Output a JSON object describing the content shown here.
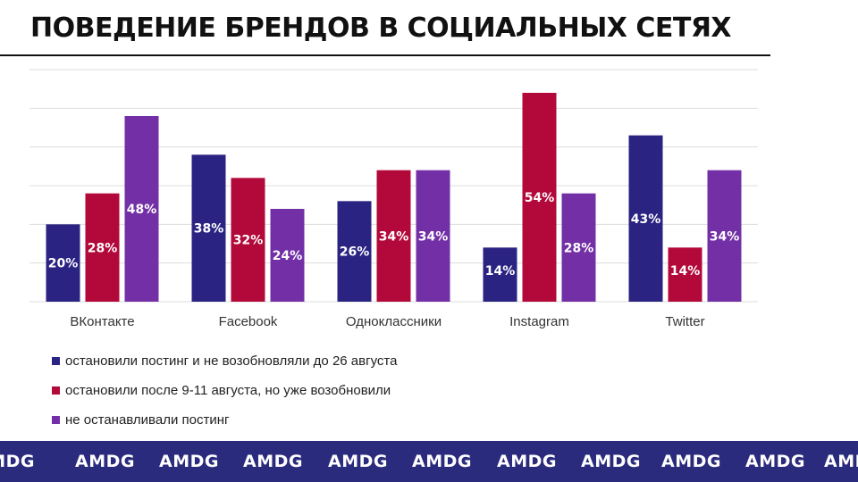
{
  "page": {
    "title": "ПОВЕДЕНИЕ БРЕНДОВ В СОЦИАЛЬНЫХ СЕТЯХ",
    "footer_brand": "AMDG"
  },
  "colors": {
    "series": [
      "#2b2382",
      "#b2083a",
      "#7330a6"
    ],
    "footer_bg": "#2b2b7d",
    "grid": "#dddddd"
  },
  "chart_data": {
    "type": "bar",
    "title": "ПОВЕДЕНИЕ БРЕНДОВ В СОЦИАЛЬНЫХ СЕТЯХ",
    "categories": [
      "ВКонтакте",
      "Facebook",
      "Одноклассники",
      "Instagram",
      "Twitter"
    ],
    "series": [
      {
        "name": "остановили постинг и не возобновляли до 26 августа",
        "values": [
          20,
          38,
          26,
          14,
          43
        ],
        "labels": [
          "20%",
          "38%",
          "26%",
          "14%",
          "43%"
        ]
      },
      {
        "name": "остановили после 9-11 августа, но уже возобновили",
        "values": [
          28,
          32,
          34,
          54,
          14
        ],
        "labels": [
          "28%",
          "32%",
          "34%",
          "54%",
          "14%"
        ]
      },
      {
        "name": "не останавливали постинг",
        "values": [
          48,
          24,
          34,
          28,
          34
        ],
        "labels": [
          "48%",
          "24%",
          "34%",
          "28%",
          "34%"
        ]
      }
    ],
    "xlabel": "",
    "ylabel": "",
    "ylim": [
      0,
      60
    ],
    "grid": true,
    "legend_position": "bottom-left"
  }
}
